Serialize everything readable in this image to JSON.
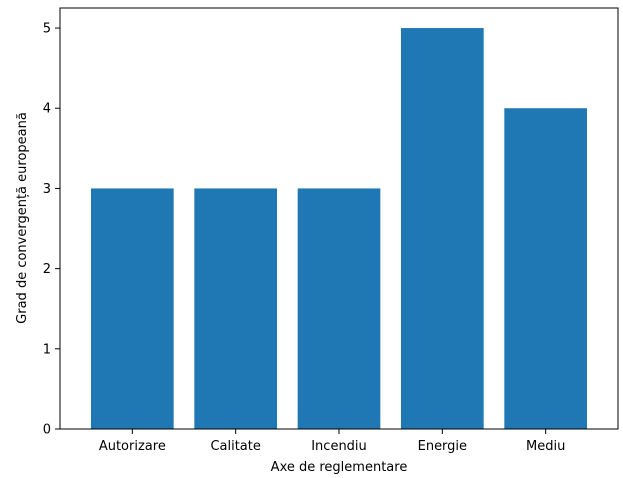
{
  "chart_data": {
    "type": "bar",
    "categories": [
      "Autorizare",
      "Calitate",
      "Incendiu",
      "Energie",
      "Mediu"
    ],
    "values": [
      3,
      3,
      3,
      5,
      4
    ],
    "title": "",
    "xlabel": "Axe de reglementare",
    "ylabel": "Grad de convergență europeană",
    "ylim": [
      0,
      5.25
    ],
    "yticks": [
      0,
      1,
      2,
      3,
      4,
      5
    ],
    "grid": false,
    "legend": "none",
    "bar_color": "#1f77b4"
  }
}
